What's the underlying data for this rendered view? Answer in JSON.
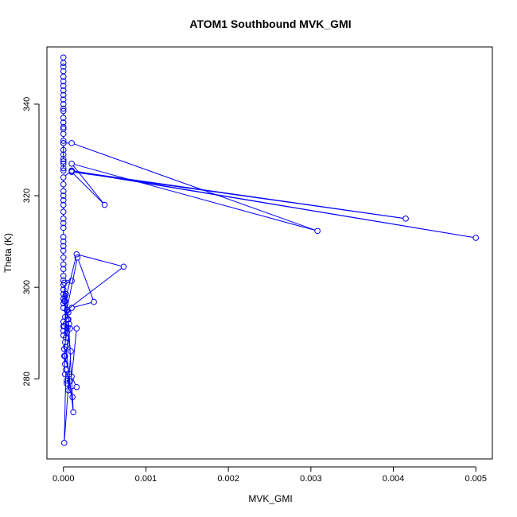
{
  "chart_data": {
    "type": "line",
    "title": "ATOM1 Southbound MVK_GMI",
    "xlabel": "MVK_GMI",
    "ylabel": "Theta (K)",
    "xlim": [
      -0.0002,
      0.0052
    ],
    "ylim": [
      262.5,
      352.5
    ],
    "x_ticks": [
      0,
      0.001,
      0.002,
      0.003,
      0.004,
      0.005
    ],
    "x_tick_labels": [
      "0.000",
      "0.001",
      "0.002",
      "0.003",
      "0.004",
      "0.005"
    ],
    "y_ticks": [
      280,
      300,
      320,
      340
    ],
    "y_tick_labels": [
      "280",
      "300",
      "320",
      "340"
    ],
    "series_color": "#0000ff",
    "marker": "open-circle",
    "grid": false,
    "series": [
      {
        "x": [
          0.0,
          0.0,
          0.0,
          0.0,
          0.0,
          0.0,
          0.0,
          0.0,
          0.0,
          0.0,
          0.0,
          0.0,
          0.0,
          0.0,
          0.0,
          0.0,
          0.0,
          0.0,
          0.0,
          0.0,
          0.0,
          0.0,
          0.0,
          0.0,
          0.0,
          0.0,
          0.0,
          0.0,
          0.0001,
          0.00308,
          0.0001,
          0.0005,
          0.0001,
          0.00415,
          0.0001,
          0.005,
          0.0001,
          0.0,
          0.0,
          0.0,
          0.0,
          0.0,
          0.0,
          0.0,
          0.0,
          0.0,
          0.0,
          0.0,
          0.0,
          0.0,
          0.0,
          0.0,
          0.0,
          0.0,
          0.0,
          0.0,
          0.0001,
          0.0,
          0.0,
          0.0,
          0.0,
          0.0,
          0.0,
          0.00016,
          0.00073,
          4e-05,
          0.00017,
          0.00037,
          0.0001,
          6e-05,
          2e-05,
          0.0,
          0.0,
          0.0,
          0.0,
          5e-05,
          1e-05,
          2e-05,
          8e-05,
          0.00016,
          0.0001,
          0.00016,
          6e-05,
          8e-05,
          4e-05,
          2e-05,
          1e-05,
          2e-05,
          4e-05,
          7e-05,
          5e-05,
          1e-05,
          3e-05,
          6e-05,
          0.00012,
          3e-05,
          2e-05,
          7e-05,
          4e-05,
          0.00011,
          3e-05,
          1e-05,
          9e-05,
          3e-05,
          2e-05,
          5e-05,
          1e-05,
          3e-05,
          1e-05,
          2e-05
        ],
        "y": [
          350.2,
          349.0,
          348.2,
          347.2,
          346.0,
          345.0,
          344.0,
          343.0,
          342.0,
          341.0,
          340.0,
          339.0,
          338.5,
          337.0,
          336.0,
          335.0,
          334.6,
          333.5,
          332.0,
          331.5,
          330.0,
          329.0,
          328.0,
          327.0,
          326.0,
          325.5,
          327.5,
          331.5,
          331.5,
          312.3,
          327.0,
          318.0,
          325.2,
          315.0,
          325.4,
          310.8,
          325.5,
          324.0,
          322.5,
          321.0,
          320.0,
          319.0,
          318.0,
          316.5,
          315.0,
          314.0,
          313.0,
          311.0,
          310.0,
          309.0,
          308.0,
          306.5,
          305.0,
          304.0,
          302.5,
          301.5,
          301.4,
          300.5,
          299.5,
          298.5,
          297.5,
          296.5,
          295.5,
          307.2,
          304.5,
          295.0,
          306.5,
          296.8,
          295.5,
          294.5,
          293.5,
          292.5,
          291.5,
          290.5,
          289.5,
          291.2,
          286.5,
          283.2,
          291.0,
          291.0,
          280.5,
          278.2,
          277.5,
          279.5,
          279.6,
          281.0,
          285.0,
          288.0,
          290.0,
          292.0,
          295.0,
          297.0,
          298.5,
          293.0,
          272.7,
          287.0,
          285.0,
          281.0,
          279.0,
          276.0,
          282.0,
          266.0,
          286.0,
          292.0,
          297.0,
          293.0,
          291.5,
          289.0,
          301.0,
          298.0
        ]
      }
    ]
  }
}
